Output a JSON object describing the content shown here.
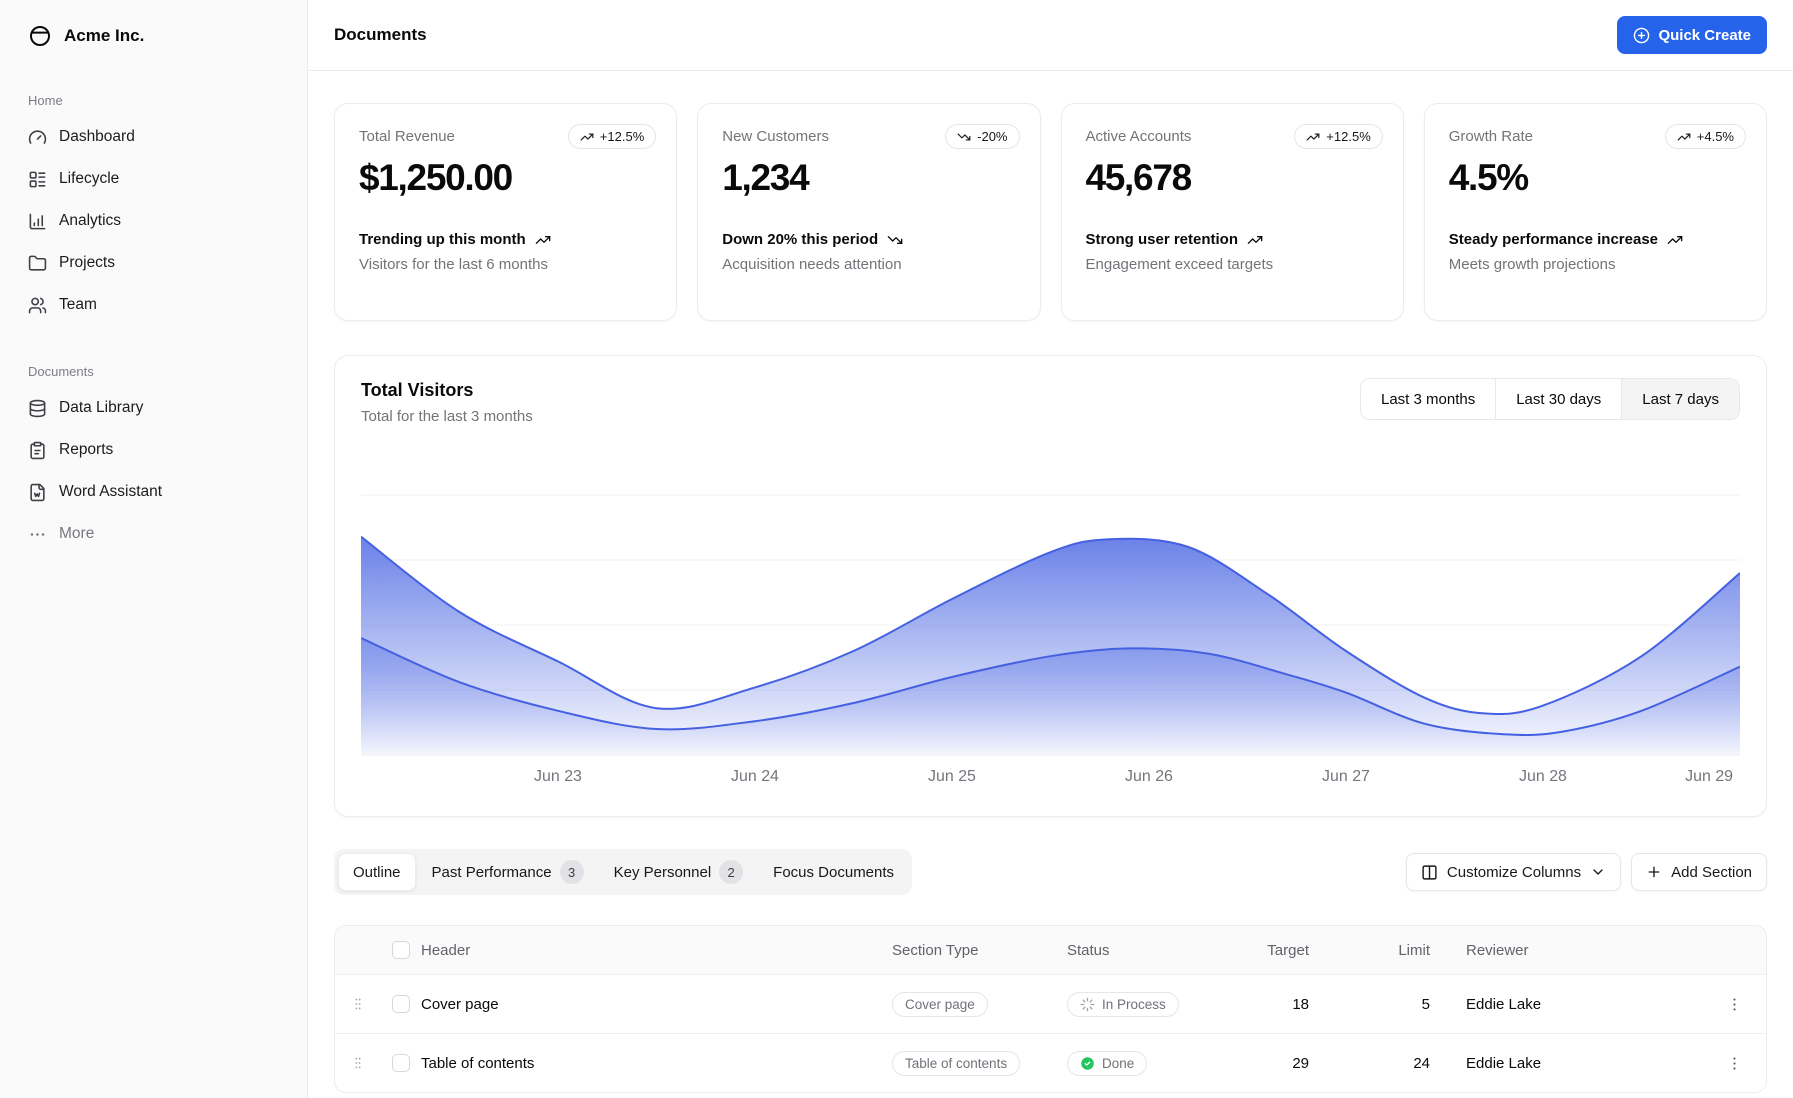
{
  "colors": {
    "accent_blue": "#2563eb",
    "chart_stroke": "#4561e2",
    "chart_fill": "#5d76e6",
    "status_done_green": "#22c55e"
  },
  "sidebar": {
    "brand": "Acme Inc.",
    "groups": [
      {
        "label": "Home",
        "items": [
          {
            "label": "Dashboard",
            "icon": "gauge-icon"
          },
          {
            "label": "Lifecycle",
            "icon": "layout-list-icon"
          },
          {
            "label": "Analytics",
            "icon": "bar-chart-icon"
          },
          {
            "label": "Projects",
            "icon": "folder-icon"
          },
          {
            "label": "Team",
            "icon": "users-icon"
          }
        ]
      },
      {
        "label": "Documents",
        "items": [
          {
            "label": "Data Library",
            "icon": "database-icon"
          },
          {
            "label": "Reports",
            "icon": "clipboard-icon"
          },
          {
            "label": "Word Assistant",
            "icon": "file-icon"
          },
          {
            "label": "More",
            "icon": "ellipsis-icon"
          }
        ]
      }
    ]
  },
  "header": {
    "title": "Documents",
    "quick_create_label": "Quick Create"
  },
  "stat_cards": [
    {
      "label": "Total Revenue",
      "value": "$1,250.00",
      "badge": "+12.5%",
      "trend": "up",
      "foot_title": "Trending up this month",
      "foot_sub": "Visitors for the last 6 months"
    },
    {
      "label": "New Customers",
      "value": "1,234",
      "badge": "-20%",
      "trend": "down",
      "foot_title": "Down 20% this period",
      "foot_sub": "Acquisition needs attention"
    },
    {
      "label": "Active Accounts",
      "value": "45,678",
      "badge": "+12.5%",
      "trend": "up",
      "foot_title": "Strong user retention",
      "foot_sub": "Engagement exceed targets"
    },
    {
      "label": "Growth Rate",
      "value": "4.5%",
      "badge": "+4.5%",
      "trend": "up",
      "foot_title": "Steady performance increase",
      "foot_sub": "Meets growth projections"
    }
  ],
  "visitors": {
    "title": "Total Visitors",
    "subtitle": "Total for the last 3 months",
    "ranges": [
      {
        "label": "Last 3 months",
        "active": false
      },
      {
        "label": "Last 30 days",
        "active": false
      },
      {
        "label": "Last 7 days",
        "active": true
      }
    ]
  },
  "chart_data": {
    "type": "area",
    "title": "Total Visitors",
    "x_tick_labels": [
      "Jun 23",
      "Jun 24",
      "Jun 25",
      "Jun 26",
      "Jun 27",
      "Jun 28",
      "Jun 29"
    ],
    "x_domain_days": [
      -1,
      6
    ],
    "ylim": [
      0,
      100
    ],
    "grid": "horizontal",
    "legend_position": "none",
    "note": "two unlabeled stacked-looking area series, values estimated as % of plot height",
    "series": [
      {
        "name": "upper",
        "points": [
          [
            -1,
            84
          ],
          [
            -0.5,
            55
          ],
          [
            0,
            36
          ],
          [
            0.5,
            18
          ],
          [
            1,
            26
          ],
          [
            1.5,
            40
          ],
          [
            2,
            60
          ],
          [
            2.5,
            78
          ],
          [
            2.8,
            83
          ],
          [
            3.2,
            80
          ],
          [
            3.6,
            62
          ],
          [
            4,
            40
          ],
          [
            4.4,
            22
          ],
          [
            4.7,
            16
          ],
          [
            5,
            19
          ],
          [
            5.5,
            38
          ],
          [
            6,
            70
          ]
        ]
      },
      {
        "name": "lower",
        "points": [
          [
            -1,
            45
          ],
          [
            -0.5,
            28
          ],
          [
            0,
            17
          ],
          [
            0.5,
            10
          ],
          [
            1,
            13
          ],
          [
            1.5,
            20
          ],
          [
            2,
            30
          ],
          [
            2.5,
            38
          ],
          [
            2.9,
            41
          ],
          [
            3.3,
            39
          ],
          [
            3.7,
            31
          ],
          [
            4,
            24
          ],
          [
            4.4,
            12
          ],
          [
            4.8,
            8
          ],
          [
            5.1,
            9
          ],
          [
            5.5,
            17
          ],
          [
            6,
            34
          ]
        ]
      }
    ]
  },
  "tabs": {
    "items": [
      {
        "label": "Outline",
        "active": true
      },
      {
        "label": "Past Performance",
        "badge": "3"
      },
      {
        "label": "Key Personnel",
        "badge": "2"
      },
      {
        "label": "Focus Documents"
      }
    ]
  },
  "toolbar": {
    "customize_columns": "Customize Columns",
    "add_section": "Add Section"
  },
  "table": {
    "columns": [
      "Header",
      "Section Type",
      "Status",
      "Target",
      "Limit",
      "Reviewer"
    ],
    "rows": [
      {
        "header": "Cover page",
        "section_type": "Cover page",
        "status": "In Process",
        "status_kind": "in-process",
        "target": "18",
        "limit": "5",
        "reviewer": "Eddie Lake"
      },
      {
        "header": "Table of contents",
        "section_type": "Table of contents",
        "status": "Done",
        "status_kind": "done",
        "target": "29",
        "limit": "24",
        "reviewer": "Eddie Lake"
      }
    ]
  }
}
